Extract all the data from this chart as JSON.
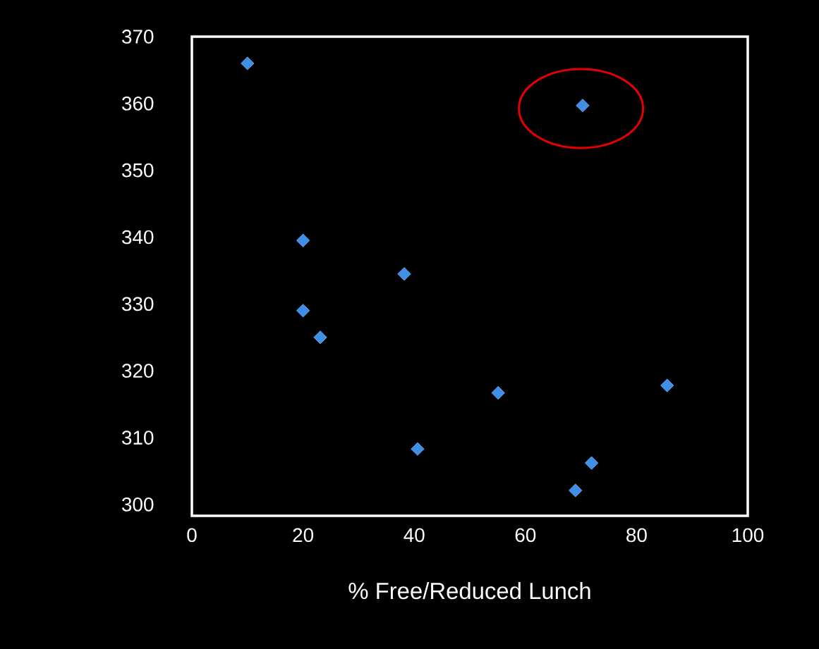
{
  "chart_data": {
    "type": "scatter",
    "xlabel": "% Free/Reduced Lunch",
    "x": [
      10,
      70.3,
      20,
      38.2,
      20,
      23.1,
      55.1,
      85.5,
      40.6,
      71.9,
      69
    ],
    "values": [
      366,
      359.7,
      339.5,
      334.5,
      329,
      325,
      316.7,
      317.8,
      308.3,
      306.2,
      302.1
    ],
    "color": "#3d8fe8",
    "marker": "diamond",
    "xlim": [
      0,
      100
    ],
    "ylim": [
      298.3,
      370
    ],
    "xticks": [
      0,
      20,
      40,
      60,
      80,
      100
    ],
    "yticks": [
      300,
      310,
      320,
      330,
      340,
      350,
      360,
      370
    ],
    "grid": false
  }
}
